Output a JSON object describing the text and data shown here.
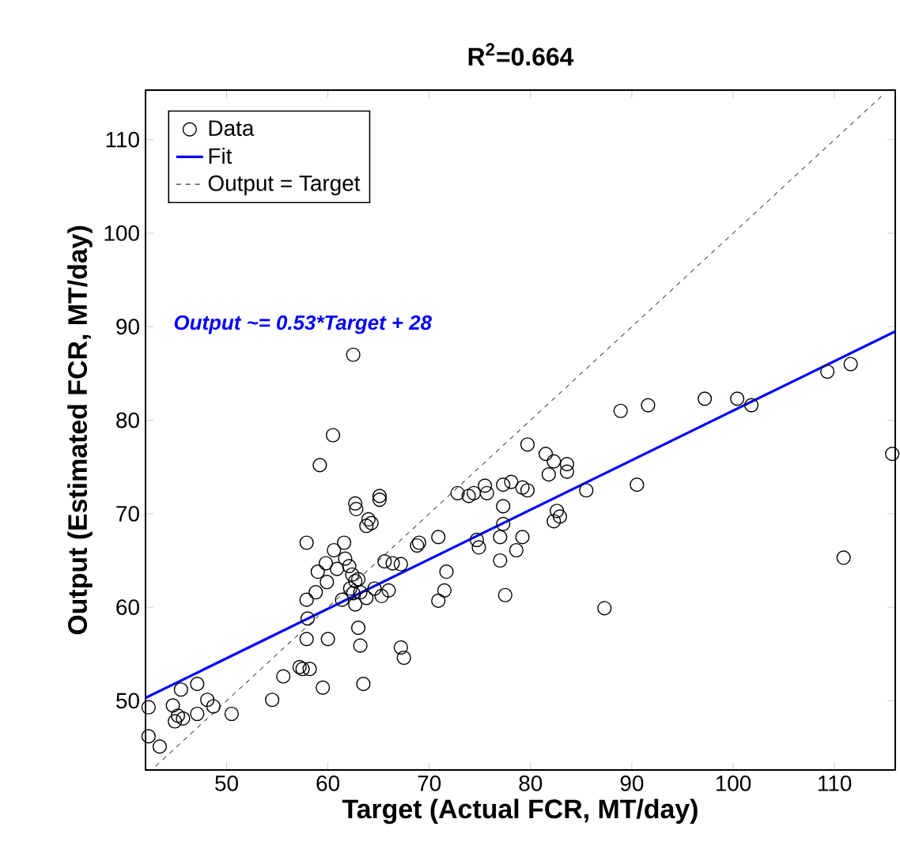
{
  "chart_data": {
    "type": "scatter",
    "title": "R$^{2}$=0.664",
    "xlabel": "Target (Actual FCR, MT/day)",
    "ylabel": "Output (Estimated FCR, MT/day)",
    "annotations": [
      "Output ~= 0.53*Target + 28"
    ],
    "xlim": [
      42,
      116
    ],
    "ylim": [
      42.6,
      115.3
    ],
    "xticks": [
      50,
      60,
      70,
      80,
      90,
      100,
      110
    ],
    "yticks": [
      50,
      60,
      70,
      80,
      90,
      100,
      110
    ],
    "grid": false,
    "legend": "top left",
    "series": [
      {
        "name": "Data",
        "marker": "circle",
        "color": "#000000",
        "x": [
          42.3,
          42.3,
          43.4,
          44.7,
          45.2,
          44.9,
          45.7,
          45.5,
          47.1,
          48.1,
          47.1,
          48.7,
          50.5,
          54.5,
          55.6,
          57.5,
          58.2,
          59.5,
          57.9,
          60.0,
          63.5,
          63.2,
          63.0,
          57.9,
          57.9,
          59.0,
          59.8,
          60.6,
          61.6,
          62.7,
          64.0,
          65.1,
          62.4,
          62.1,
          62.7,
          63.2,
          61.4,
          62.7,
          64.6,
          65.6,
          65.3,
          66.0,
          60.5,
          59.2,
          62.8,
          64.3,
          63.8,
          65.1,
          61.7,
          60.9,
          59.9,
          58.8,
          58.0,
          57.2,
          62.2,
          63.0,
          63.8,
          62.5,
          66.4,
          67.2,
          68.8,
          69.0,
          70.9,
          71.7,
          71.5,
          70.9,
          67.2,
          67.5,
          72.8,
          73.9,
          74.4,
          75.5,
          74.7,
          79.7,
          81.5,
          82.3,
          83.6,
          81.8,
          83.6,
          75.7,
          77.3,
          78.1,
          79.2,
          79.7,
          77.3,
          82.6,
          82.3,
          82.9,
          85.5,
          90.5,
          77.0,
          79.2,
          74.9,
          77.0,
          78.6,
          77.3,
          77.5,
          87.3,
          88.9,
          91.6,
          97.2,
          100.4,
          101.8,
          109.3,
          111.6,
          115.7,
          110.9,
          62.5
        ],
        "values": [
          49.3,
          46.2,
          45.1,
          49.5,
          48.4,
          47.8,
          48.1,
          51.2,
          51.8,
          50.1,
          48.6,
          49.4,
          48.6,
          50.1,
          52.6,
          53.4,
          53.4,
          51.4,
          56.6,
          56.6,
          51.8,
          55.9,
          57.8,
          60.8,
          66.9,
          63.8,
          64.7,
          66.1,
          66.9,
          71.1,
          69.4,
          71.9,
          63.5,
          64.4,
          62.8,
          61.6,
          60.8,
          60.3,
          62.0,
          64.9,
          61.2,
          61.8,
          78.4,
          75.2,
          70.5,
          69.0,
          68.7,
          71.5,
          65.2,
          64.1,
          62.7,
          61.6,
          58.8,
          53.6,
          62.0,
          63.0,
          61.0,
          61.5,
          64.7,
          64.6,
          66.6,
          66.9,
          67.5,
          63.8,
          61.8,
          60.7,
          55.7,
          54.6,
          72.2,
          71.9,
          72.2,
          73.0,
          67.2,
          77.4,
          76.4,
          75.6,
          75.3,
          74.2,
          74.5,
          72.2,
          73.1,
          73.4,
          72.8,
          72.5,
          70.8,
          70.3,
          69.2,
          69.7,
          72.5,
          73.1,
          67.5,
          67.5,
          66.4,
          65.0,
          66.1,
          68.9,
          61.3,
          59.9,
          81.0,
          81.6,
          82.3,
          82.3,
          81.6,
          85.2,
          86.0,
          76.4,
          65.3,
          87.0
        ]
      },
      {
        "name": "Fit",
        "type": "line",
        "marker": "none",
        "color": "#0000ff",
        "line_style": "solid",
        "x": [
          42,
          116
        ],
        "values": [
          50.3,
          89.5
        ]
      },
      {
        "name": "Output = Target",
        "type": "line",
        "marker": "none",
        "color": "#000000",
        "line_style": "dashed",
        "x": [
          43,
          115
        ],
        "values": [
          43,
          115
        ]
      }
    ]
  }
}
